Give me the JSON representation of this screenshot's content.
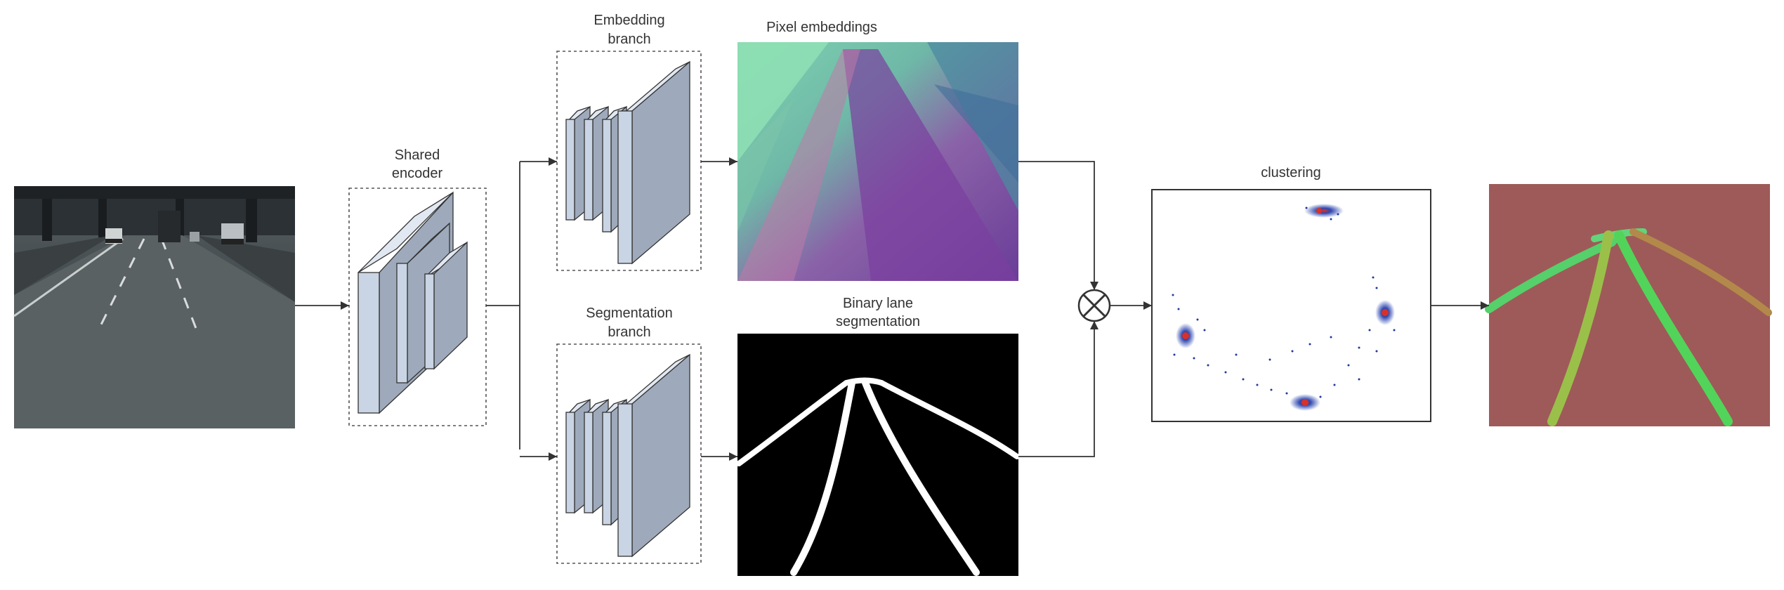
{
  "labels": {
    "shared_encoder": [
      "Shared",
      "encoder"
    ],
    "embedding_branch": [
      "Embedding",
      "branch"
    ],
    "segmentation_branch": [
      "Segmentation",
      "branch"
    ],
    "pixel_embeddings": "Pixel embeddings",
    "binary_lane_segmentation": [
      "Binary lane",
      "segmentation"
    ],
    "clustering": "clustering"
  },
  "icons": {
    "fusion_operator": "circle-times-icon"
  },
  "colors": {
    "layer_face": "#c9d4e4",
    "layer_side": "#9eaabb",
    "layer_top": "#e2e8f1",
    "line": "#333333",
    "output_background": "#9e5a58",
    "cluster_blue": "#1f3a9a",
    "cluster_red": "#d7312a"
  }
}
